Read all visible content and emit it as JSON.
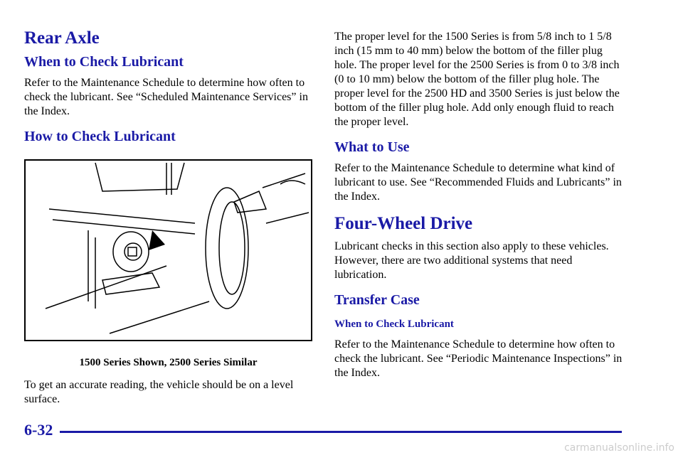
{
  "left": {
    "title": "Rear Axle",
    "when_heading": "When to Check Lubricant",
    "when_text": "Refer to the Maintenance Schedule to determine how often to check the lubricant. See “Scheduled Maintenance Services” in the Index.",
    "how_heading": "How to Check Lubricant",
    "caption": "1500 Series Shown, 2500 Series Similar",
    "reading_text": "To get an accurate reading, the vehicle should be on a level surface."
  },
  "right": {
    "level_text": "The proper level for the 1500 Series is from 5/8 inch to 1 5/8 inch (15 mm to 40 mm) below the bottom of the filler plug hole. The proper level for the 2500 Series is from 0 to 3/8 inch (0 to 10 mm) below the bottom of the filler plug hole. The proper level for the 2500 HD and 3500 Series is just below the bottom of the filler plug hole. Add only enough fluid to reach the proper level.",
    "what_heading": "What to Use",
    "what_text": "Refer to the Maintenance Schedule to determine what kind of lubricant to use. See “Recommended Fluids and Lubricants” in the Index.",
    "fwd_title": "Four-Wheel Drive",
    "fwd_text": "Lubricant checks in this section also apply to these vehicles. However, there are two additional systems that need lubrication.",
    "transfer_heading": "Transfer Case",
    "transfer_sub": "When to Check Lubricant",
    "transfer_text": "Refer to the Maintenance Schedule to determine how often to check the lubricant. See “Periodic Maintenance Inspections” in the Index."
  },
  "footer": {
    "page_number": "6-32",
    "watermark": "carmanualsonline.info"
  }
}
